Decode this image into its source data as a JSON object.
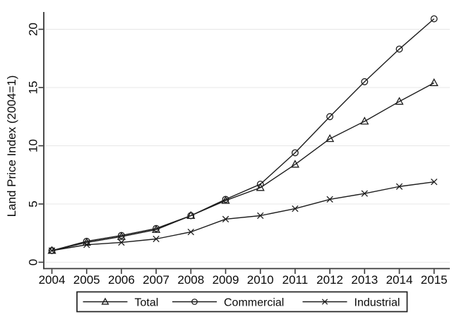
{
  "figure": {
    "title": "",
    "background_color": "#ffffff"
  },
  "chart_data": {
    "type": "line",
    "title": "",
    "xlabel": "",
    "ylabel": "Land Price Index (2004=1)",
    "x": [
      2004,
      2005,
      2006,
      2007,
      2008,
      2009,
      2010,
      2011,
      2012,
      2013,
      2014,
      2015
    ],
    "series": [
      {
        "name": "Total",
        "marker": "triangle",
        "values": [
          1,
          1.7,
          2.2,
          2.8,
          4.0,
          5.3,
          6.4,
          8.4,
          10.6,
          12.1,
          13.8,
          15.4
        ]
      },
      {
        "name": "Commercial",
        "marker": "circle",
        "values": [
          1,
          1.8,
          2.3,
          2.9,
          4.0,
          5.4,
          6.7,
          9.4,
          12.5,
          15.5,
          18.3,
          20.9
        ]
      },
      {
        "name": "Industrial",
        "marker": "x",
        "values": [
          1,
          1.5,
          1.7,
          2.0,
          2.6,
          3.7,
          4.0,
          4.6,
          5.4,
          5.9,
          6.5,
          6.9
        ]
      }
    ],
    "yticks": [
      0,
      5,
      10,
      15,
      20
    ],
    "ylim": [
      0,
      21.5
    ],
    "grid": true,
    "legend_position": "bottom",
    "colors": {
      "line": "#1c1c1c",
      "axis": "#383838",
      "grid": "#e7e7e7",
      "text": "#0a0a0a",
      "background": "#ffffff"
    }
  }
}
